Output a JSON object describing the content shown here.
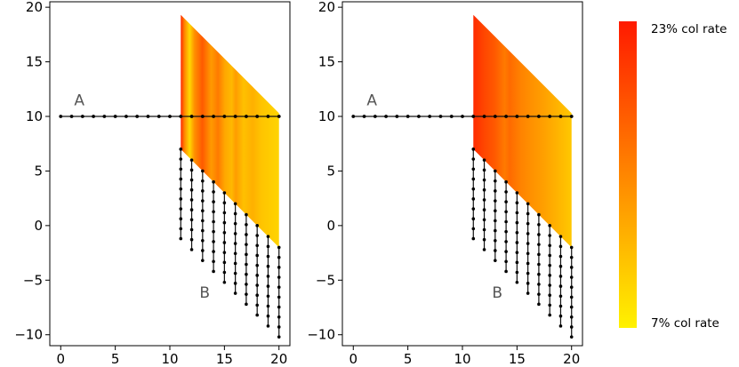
{
  "chart_data": [
    {
      "type": "line",
      "panel": "left",
      "xlim": [
        -1,
        21
      ],
      "ylim": [
        -11,
        20.5
      ],
      "xticks": [
        0,
        5,
        10,
        15,
        20
      ],
      "yticks": [
        -10,
        -5,
        0,
        5,
        10,
        15,
        20
      ],
      "annotations": [
        {
          "text": "A",
          "x": 1.7,
          "y": 11.0
        },
        {
          "text": "B",
          "x": 13.2,
          "y": -6.6
        }
      ],
      "line_A": {
        "x_start": 0,
        "x_end": 20,
        "y": 10,
        "n_points": 21
      },
      "lines_B": {
        "x_start": 11,
        "x_end": 20,
        "n_lines": 10,
        "y_top_start": 7,
        "y_top_end": -2,
        "drop": 8.2,
        "n_points": 10
      },
      "gradient_region": {
        "x_start": 11,
        "x_end": 20,
        "top_start": 19.3,
        "top_end": 10.3,
        "bottom_start": 7,
        "bottom_end": -2,
        "style": "banded"
      }
    },
    {
      "type": "line",
      "panel": "right",
      "xlim": [
        -1,
        21
      ],
      "ylim": [
        -11,
        20.5
      ],
      "xticks": [
        0,
        5,
        10,
        15,
        20
      ],
      "yticks": [
        -10,
        -5,
        0,
        5,
        10,
        15,
        20
      ],
      "annotations": [
        {
          "text": "A",
          "x": 1.7,
          "y": 11.0
        },
        {
          "text": "B",
          "x": 13.2,
          "y": -6.6
        }
      ],
      "line_A": {
        "x_start": 0,
        "x_end": 20,
        "y": 10,
        "n_points": 21
      },
      "lines_B": {
        "x_start": 11,
        "x_end": 20,
        "n_lines": 10,
        "y_top_start": 7,
        "y_top_end": -2,
        "drop": 8.2,
        "n_points": 10
      },
      "gradient_region": {
        "x_start": 11,
        "x_end": 20,
        "top_start": 19.3,
        "top_end": 10.3,
        "bottom_start": 7,
        "bottom_end": -2,
        "style": "smooth"
      }
    }
  ],
  "colorbar": {
    "top_label": "23% col rate",
    "bottom_label": "7% col rate",
    "top_color": "#ff1a00",
    "bottom_color": "#fff200"
  }
}
